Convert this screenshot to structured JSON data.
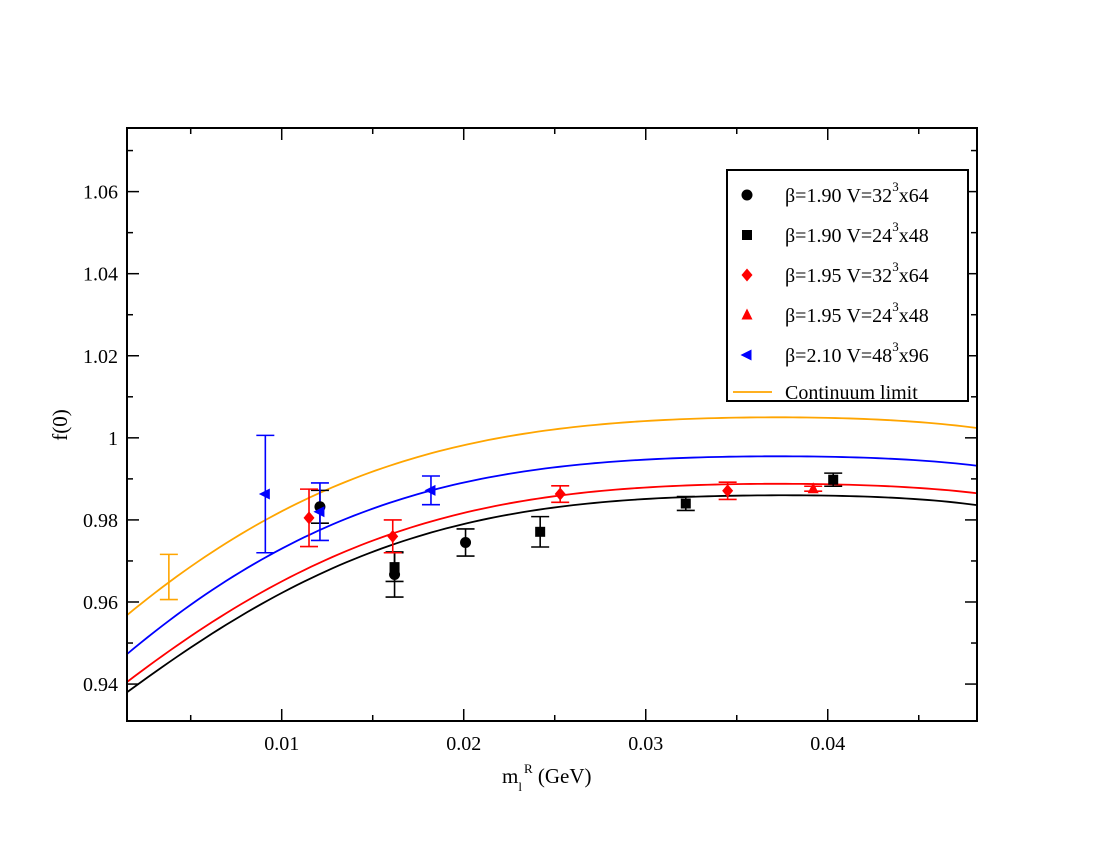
{
  "chart_data": {
    "type": "scatter",
    "title": "",
    "xlabel": {
      "main": "m",
      "sub": "l",
      "sup": "R",
      "rest": " (GeV)"
    },
    "ylabel": "f(0)",
    "xlim": [
      0.0015,
      0.0482
    ],
    "ylim": [
      0.931,
      1.0755
    ],
    "xticks": [
      0.01,
      0.02,
      0.03,
      0.04
    ],
    "xtick_labels": [
      "0.01",
      "0.02",
      "0.03",
      "0.04"
    ],
    "yticks": [
      0.94,
      0.96,
      0.98,
      1.0,
      1.02,
      1.04,
      1.06
    ],
    "ytick_labels": [
      "0.94",
      "0.96",
      "0.98",
      "1",
      "1.02",
      "1.04",
      "1.06"
    ],
    "legend_position": "top-right",
    "series": [
      {
        "name": "β=1.90  V=32³x64",
        "legend": {
          "pre": "β=1.90  V=32",
          "sup": "3",
          "post": "x64"
        },
        "marker": "circle",
        "color": "#000000",
        "points": [
          {
            "x": 0.0121,
            "y": 0.9832,
            "err": 0.004
          },
          {
            "x": 0.0162,
            "y": 0.9667,
            "err": 0.0055
          },
          {
            "x": 0.0201,
            "y": 0.9745,
            "err": 0.0033
          }
        ]
      },
      {
        "name": "β=1.90  V=24³x48",
        "legend": {
          "pre": "β=1.90  V=24",
          "sup": "3",
          "post": "x48"
        },
        "marker": "square",
        "color": "#000000",
        "points": [
          {
            "x": 0.0162,
            "y": 0.9685,
            "err": 0.0035
          },
          {
            "x": 0.0242,
            "y": 0.9771,
            "err": 0.0037
          },
          {
            "x": 0.0322,
            "y": 0.984,
            "err": 0.0017
          },
          {
            "x": 0.0403,
            "y": 0.9898,
            "err": 0.0016
          }
        ]
      },
      {
        "name": "β=1.95  V=32³x64",
        "legend": {
          "pre": "β=1.95  V=32",
          "sup": "3",
          "post": "x64"
        },
        "marker": "diamond",
        "color": "#ff0000",
        "points": [
          {
            "x": 0.0115,
            "y": 0.9805,
            "err": 0.007
          },
          {
            "x": 0.0161,
            "y": 0.976,
            "err": 0.004
          },
          {
            "x": 0.0253,
            "y": 0.9863,
            "err": 0.002
          },
          {
            "x": 0.0345,
            "y": 0.9871,
            "err": 0.0021
          }
        ]
      },
      {
        "name": "β=1.95  V=24³x48",
        "legend": {
          "pre": "β=1.95  V=24",
          "sup": "3",
          "post": "x48"
        },
        "marker": "triangle-up",
        "color": "#ff0000",
        "points": [
          {
            "x": 0.0392,
            "y": 0.9876,
            "err": 0.0006
          }
        ]
      },
      {
        "name": "β=2.10  V=48³x96",
        "legend": {
          "pre": "β=2.10  V=48",
          "sup": "3",
          "post": "x96"
        },
        "marker": "triangle-left",
        "color": "#0000ff",
        "points": [
          {
            "x": 0.0091,
            "y": 0.9863,
            "err": 0.0143
          },
          {
            "x": 0.0121,
            "y": 0.982,
            "err": 0.007
          },
          {
            "x": 0.0182,
            "y": 0.9872,
            "err": 0.0035
          }
        ]
      }
    ],
    "fit_curves": [
      {
        "name": "Continuum limit",
        "color": "#ffa500",
        "points": [
          [
            0.0015,
            0.9568
          ],
          [
            0.01,
            0.9821
          ],
          [
            0.02,
            0.9982
          ],
          [
            0.03,
            1.0041
          ],
          [
            0.037,
            1.005
          ],
          [
            0.0482,
            1.0024
          ]
        ]
      },
      {
        "name": "β=2.10 fit",
        "color": "#0000ff",
        "points": [
          [
            0.0015,
            0.9473
          ],
          [
            0.01,
            0.973
          ],
          [
            0.02,
            0.9891
          ],
          [
            0.03,
            0.9947
          ],
          [
            0.037,
            0.9955
          ],
          [
            0.0482,
            0.9932
          ]
        ]
      },
      {
        "name": "β=1.95 fit",
        "color": "#ff0000",
        "points": [
          [
            0.0015,
            0.9405
          ],
          [
            0.01,
            0.965
          ],
          [
            0.02,
            0.9817
          ],
          [
            0.03,
            0.9879
          ],
          [
            0.037,
            0.9888
          ],
          [
            0.0482,
            0.9865
          ]
        ]
      },
      {
        "name": "β=1.90 fit",
        "color": "#000000",
        "points": [
          [
            0.0015,
            0.938
          ],
          [
            0.01,
            0.9622
          ],
          [
            0.02,
            0.979
          ],
          [
            0.03,
            0.9851
          ],
          [
            0.037,
            0.986
          ],
          [
            0.0482,
            0.9836
          ]
        ]
      }
    ],
    "continuum_point": {
      "x": 0.0038,
      "y": 0.9661,
      "err": 0.0055,
      "color": "#ffa500"
    },
    "continuum_legend": "Continuum limit"
  }
}
